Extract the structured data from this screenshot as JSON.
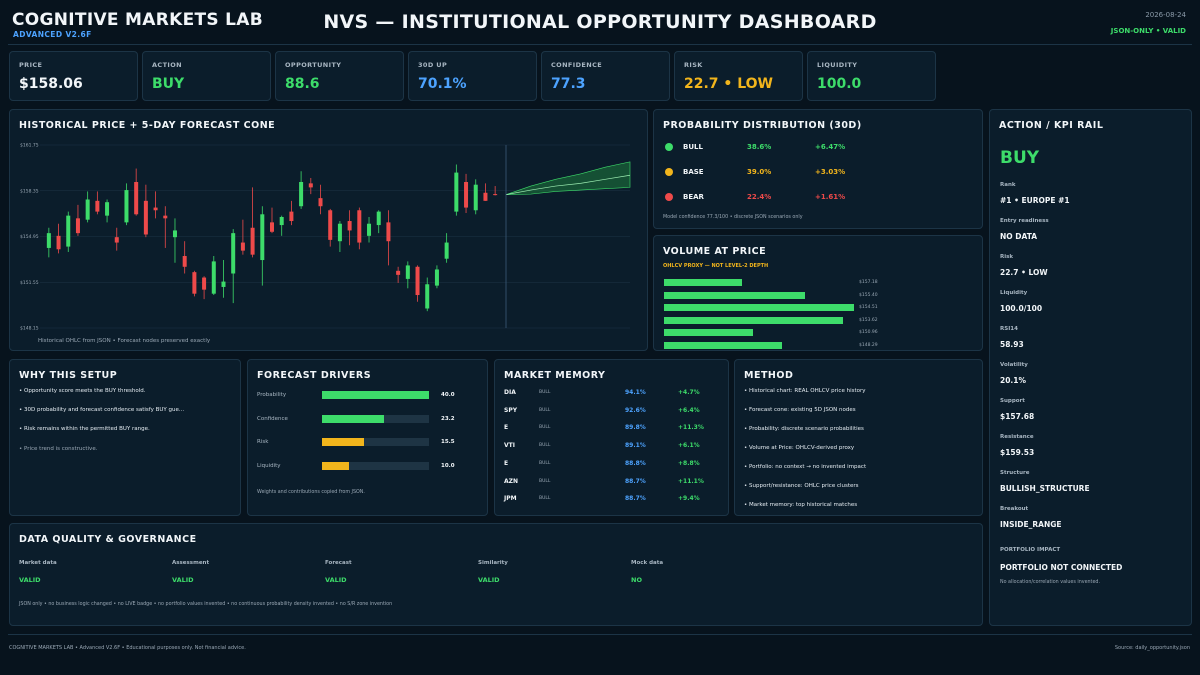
{
  "header": {
    "brand": "COGNITIVE MARKETS LAB",
    "brand_sub": "ADVANCED V2.6F",
    "title": "NVS — INSTITUTIONAL OPPORTUNITY DASHBOARD",
    "date": "2026-08-24",
    "validity": "JSON-ONLY • VALID"
  },
  "kpis": [
    {
      "label": "PRICE",
      "value": "$158.06",
      "color": "#f2f6f9"
    },
    {
      "label": "ACTION",
      "value": "BUY",
      "color": "#3ddc6a"
    },
    {
      "label": "OPPORTUNITY",
      "value": "88.6",
      "color": "#3ddc6a"
    },
    {
      "label": "30D UP",
      "value": "70.1%",
      "color": "#4da3ff"
    },
    {
      "label": "CONFIDENCE",
      "value": "77.3",
      "color": "#4da3ff"
    },
    {
      "label": "RISK",
      "value": "22.7 • LOW",
      "color": "#f2b51c"
    },
    {
      "label": "LIQUIDITY",
      "value": "100.0",
      "color": "#3ddc6a"
    }
  ],
  "price_chart": {
    "title": "HISTORICAL PRICE + 5-DAY FORECAST CONE",
    "y_ticks": [
      "$161.75",
      "$158.35",
      "$154.95",
      "$151.55",
      "$148.15"
    ],
    "footnote": "Historical OHLC from JSON • Forecast nodes preserved exactly"
  },
  "chart_data": {
    "type": "candlestick",
    "ylim": [
      148.15,
      161.75
    ],
    "up_color": "#3ddc6a",
    "down_color": "#ee4a4a",
    "candles": [
      {
        "o": 154.1,
        "h": 155.6,
        "l": 153.4,
        "c": 155.2
      },
      {
        "o": 155.0,
        "h": 155.9,
        "l": 153.7,
        "c": 154.0
      },
      {
        "o": 154.2,
        "h": 156.8,
        "l": 153.8,
        "c": 156.5
      },
      {
        "o": 156.3,
        "h": 157.3,
        "l": 155.0,
        "c": 155.2
      },
      {
        "o": 156.2,
        "h": 158.3,
        "l": 156.0,
        "c": 157.7
      },
      {
        "o": 157.6,
        "h": 158.3,
        "l": 156.6,
        "c": 156.8
      },
      {
        "o": 156.5,
        "h": 157.7,
        "l": 156.0,
        "c": 157.5
      },
      {
        "o": 154.9,
        "h": 155.6,
        "l": 153.9,
        "c": 154.5
      },
      {
        "o": 156.0,
        "h": 158.9,
        "l": 155.8,
        "c": 158.4
      },
      {
        "o": 159.0,
        "h": 160.0,
        "l": 156.5,
        "c": 156.6
      },
      {
        "o": 157.6,
        "h": 158.8,
        "l": 154.9,
        "c": 155.1
      },
      {
        "o": 157.1,
        "h": 158.3,
        "l": 156.3,
        "c": 156.9
      },
      {
        "o": 156.5,
        "h": 157.2,
        "l": 154.1,
        "c": 156.3
      },
      {
        "o": 154.9,
        "h": 156.3,
        "l": 153.0,
        "c": 155.4
      },
      {
        "o": 153.5,
        "h": 154.6,
        "l": 152.2,
        "c": 152.7
      },
      {
        "o": 152.3,
        "h": 152.4,
        "l": 150.5,
        "c": 150.7
      },
      {
        "o": 151.9,
        "h": 152.0,
        "l": 150.3,
        "c": 151.0
      },
      {
        "o": 150.7,
        "h": 153.5,
        "l": 150.6,
        "c": 153.1
      },
      {
        "o": 151.2,
        "h": 153.2,
        "l": 150.4,
        "c": 151.6
      },
      {
        "o": 152.2,
        "h": 155.5,
        "l": 150.0,
        "c": 155.2
      },
      {
        "o": 154.5,
        "h": 156.2,
        "l": 153.6,
        "c": 153.9
      },
      {
        "o": 155.6,
        "h": 158.6,
        "l": 153.4,
        "c": 153.6
      },
      {
        "o": 153.2,
        "h": 157.2,
        "l": 151.3,
        "c": 156.6
      },
      {
        "o": 156.0,
        "h": 157.1,
        "l": 155.2,
        "c": 155.3
      },
      {
        "o": 155.8,
        "h": 156.5,
        "l": 155.0,
        "c": 156.4
      },
      {
        "o": 156.8,
        "h": 157.6,
        "l": 155.8,
        "c": 156.1
      },
      {
        "o": 157.2,
        "h": 159.8,
        "l": 157.0,
        "c": 159.0
      },
      {
        "o": 158.9,
        "h": 159.3,
        "l": 158.1,
        "c": 158.6
      },
      {
        "o": 157.8,
        "h": 158.8,
        "l": 156.6,
        "c": 157.2
      },
      {
        "o": 156.9,
        "h": 157.0,
        "l": 154.2,
        "c": 154.7
      },
      {
        "o": 154.6,
        "h": 156.1,
        "l": 153.8,
        "c": 155.9
      },
      {
        "o": 156.1,
        "h": 156.9,
        "l": 154.3,
        "c": 155.4
      },
      {
        "o": 156.9,
        "h": 157.1,
        "l": 154.0,
        "c": 154.5
      },
      {
        "o": 155.0,
        "h": 156.4,
        "l": 154.5,
        "c": 155.9
      },
      {
        "o": 155.8,
        "h": 156.9,
        "l": 155.2,
        "c": 156.8
      },
      {
        "o": 156.0,
        "h": 156.9,
        "l": 152.8,
        "c": 154.6
      },
      {
        "o": 152.4,
        "h": 152.7,
        "l": 151.5,
        "c": 152.1
      },
      {
        "o": 151.8,
        "h": 153.1,
        "l": 151.1,
        "c": 152.8
      },
      {
        "o": 152.7,
        "h": 152.8,
        "l": 150.1,
        "c": 150.6
      },
      {
        "o": 149.6,
        "h": 151.9,
        "l": 149.4,
        "c": 151.4
      },
      {
        "o": 151.3,
        "h": 152.8,
        "l": 151.1,
        "c": 152.5
      },
      {
        "o": 153.3,
        "h": 155.2,
        "l": 153.0,
        "c": 154.5
      },
      {
        "o": 156.8,
        "h": 160.3,
        "l": 156.5,
        "c": 159.7
      },
      {
        "o": 159.0,
        "h": 159.6,
        "l": 156.7,
        "c": 157.1
      },
      {
        "o": 156.9,
        "h": 159.2,
        "l": 156.6,
        "c": 158.8
      },
      {
        "o": 158.2,
        "h": 158.9,
        "l": 157.6,
        "c": 157.6
      },
      {
        "o": 158.1,
        "h": 158.7,
        "l": 158.0,
        "c": 158.06
      }
    ],
    "forecast": {
      "upper": [
        158.06,
        158.7,
        159.2,
        159.6,
        160.1,
        160.5
      ],
      "lower": [
        158.06,
        158.1,
        158.3,
        158.4,
        158.5,
        158.6
      ],
      "mid": [
        158.06,
        158.4,
        158.7,
        158.9,
        159.2,
        159.5
      ],
      "fill": "#1f7a3c"
    }
  },
  "probability": {
    "title": "PROBABILITY DISTRIBUTION (30D)",
    "rows": [
      {
        "name": "BULL",
        "prob": "38.6%",
        "ret": "+6.47%",
        "color": "#3ddc6a"
      },
      {
        "name": "BASE",
        "prob": "39.0%",
        "ret": "+3.03%",
        "color": "#f2b51c"
      },
      {
        "name": "BEAR",
        "prob": "22.4%",
        "ret": "+1.61%",
        "color": "#ee4a4a"
      }
    ],
    "note": "Model confidence 77.3/100 • discrete JSON scenarios only"
  },
  "volume_at_price": {
    "title": "VOLUME AT PRICE",
    "subtitle": "OHLCV PROXY — NOT LEVEL-2 DEPTH",
    "levels": [
      {
        "price": "$157.18",
        "volume": 0.41
      },
      {
        "price": "$155.40",
        "volume": 0.74
      },
      {
        "price": "$154.51",
        "volume": 1.0
      },
      {
        "price": "$153.62",
        "volume": 0.94
      },
      {
        "price": "$150.96",
        "volume": 0.47
      },
      {
        "price": "$148.29",
        "volume": 0.62
      }
    ]
  },
  "why_setup": {
    "title": "WHY THIS SETUP",
    "bullets": [
      "• Opportunity score meets the BUY threshold.",
      "• 30D probability and forecast confidence satisfy BUY gue...",
      "• Risk remains within the permitted BUY range.",
      "• Price trend is constructive."
    ]
  },
  "drivers": {
    "title": "FORECAST DRIVERS",
    "items": [
      {
        "label": "Probability",
        "value": "40.0",
        "fill": 1.0,
        "color": "#3ddc6a"
      },
      {
        "label": "Confidence",
        "value": "23.2",
        "fill": 0.58,
        "color": "#3ddc6a"
      },
      {
        "label": "Risk",
        "value": "15.5",
        "fill": 0.39,
        "color": "#f2b51c"
      },
      {
        "label": "Liquidity",
        "value": "10.0",
        "fill": 0.25,
        "color": "#f2b51c"
      }
    ],
    "note": "Weights and contributions copied from JSON."
  },
  "market_memory": {
    "title": "MARKET MEMORY",
    "rows": [
      {
        "symbol": "DIA",
        "regime": "BULL",
        "similarity": "94.1%",
        "ret": "+4.7%"
      },
      {
        "symbol": "SPY",
        "regime": "BULL",
        "similarity": "92.6%",
        "ret": "+6.4%"
      },
      {
        "symbol": "E",
        "regime": "BULL",
        "similarity": "89.8%",
        "ret": "+11.3%"
      },
      {
        "symbol": "VTI",
        "regime": "BULL",
        "similarity": "89.1%",
        "ret": "+6.1%"
      },
      {
        "symbol": "E",
        "regime": "BULL",
        "similarity": "88.8%",
        "ret": "+8.8%"
      },
      {
        "symbol": "AZN",
        "regime": "BULL",
        "similarity": "88.7%",
        "ret": "+11.1%"
      },
      {
        "symbol": "JPM",
        "regime": "BULL",
        "similarity": "88.7%",
        "ret": "+9.4%"
      }
    ]
  },
  "method": {
    "title": "METHOD",
    "bullets": [
      "• Historical chart: REAL OHLCV price history",
      "• Forecast cone: existing 5D JSON nodes",
      "• Probability: discrete scenario probabilities",
      "• Volume at Price: OHLCV-derived proxy",
      "• Portfolio: no context → no invented impact",
      "• Support/resistance: OHLC price clusters",
      "• Market memory: top historical matches"
    ]
  },
  "data_quality": {
    "title": "DATA QUALITY & GOVERNANCE",
    "items": [
      {
        "label": "Market data",
        "value": "VALID"
      },
      {
        "label": "Assessment",
        "value": "VALID"
      },
      {
        "label": "Forecast",
        "value": "VALID"
      },
      {
        "label": "Similarity",
        "value": "VALID"
      },
      {
        "label": "Mock data",
        "value": "NO"
      }
    ],
    "note": "JSON only • no business logic changed • no LIVE badge • no portfolio values invented • no continuous probability density invented • no S/R zone invention"
  },
  "rail": {
    "title": "ACTION / KPI RAIL",
    "action": "BUY",
    "items": [
      {
        "label": "Rank",
        "value": "#1 • EUROPE #1"
      },
      {
        "label": "Entry readiness",
        "value": "NO DATA"
      },
      {
        "label": "Risk",
        "value": "22.7 • LOW"
      },
      {
        "label": "Liquidity",
        "value": "100.0/100"
      },
      {
        "label": "RSI14",
        "value": "58.93"
      },
      {
        "label": "Volatility",
        "value": "20.1%"
      },
      {
        "label": "Support",
        "value": "$157.68"
      },
      {
        "label": "Resistance",
        "value": "$159.53"
      },
      {
        "label": "Structure",
        "value": "BULLISH_STRUCTURE"
      },
      {
        "label": "Breakout",
        "value": "INSIDE_RANGE"
      }
    ],
    "portfolio_label": "PORTFOLIO IMPACT",
    "portfolio_value": "PORTFOLIO NOT CONNECTED",
    "portfolio_note": "No allocation/correlation values invented."
  },
  "footer": {
    "left": "COGNITIVE MARKETS LAB • Advanced V2.6F • Educational purposes only. Not financial advice.",
    "right": "Source: daily_opportunity.json"
  }
}
